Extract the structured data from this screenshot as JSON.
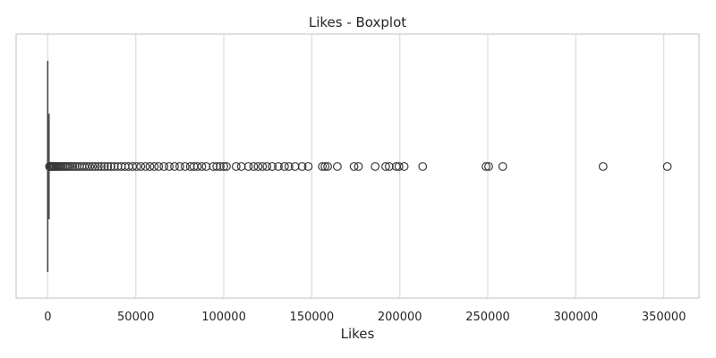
{
  "chart_data": {
    "type": "boxplot",
    "title": "Likes - Boxplot",
    "xlabel": "Likes",
    "ylabel": "",
    "orientation": "horizontal",
    "xlim": [
      -18000,
      370000
    ],
    "xticks": [
      0,
      50000,
      100000,
      150000,
      200000,
      250000,
      300000,
      350000
    ],
    "xtick_labels": [
      "0",
      "50000",
      "100000",
      "150000",
      "200000",
      "250000",
      "300000",
      "350000"
    ],
    "grid": "vertical",
    "box": {
      "q1": 0,
      "median": 0,
      "q3": 300,
      "whisker_low": 0,
      "whisker_high": 750
    },
    "outliers": [
      1000,
      1400,
      1800,
      2300,
      2800,
      3400,
      4000,
      4700,
      5400,
      6200,
      7000,
      7900,
      8800,
      9800,
      10800,
      11900,
      13000,
      14200,
      15400,
      16700,
      18000,
      19400,
      20800,
      22300,
      23800,
      25400,
      27000,
      28700,
      30400,
      32200,
      34000,
      35900,
      37800,
      39800,
      41800,
      43900,
      46000,
      48200,
      50500,
      52800,
      55500,
      58000,
      60500,
      63000,
      66000,
      69000,
      72000,
      75000,
      78000,
      81000,
      83000,
      85000,
      87500,
      90000,
      94000,
      96000,
      98000,
      100000,
      101500,
      107000,
      110000,
      114000,
      117000,
      119500,
      122000,
      124500,
      127500,
      131000,
      134500,
      137000,
      140500,
      144500,
      148000,
      156000,
      157500,
      159000,
      164500,
      174000,
      176500,
      186000,
      192000,
      194000,
      198000,
      199500,
      202500,
      213000,
      249000,
      250500,
      258500,
      315500,
      352000
    ],
    "colors": {
      "marker_edge": "#3a3a3a",
      "grid": "#dcdcdc",
      "frame": "#cccccc"
    }
  }
}
